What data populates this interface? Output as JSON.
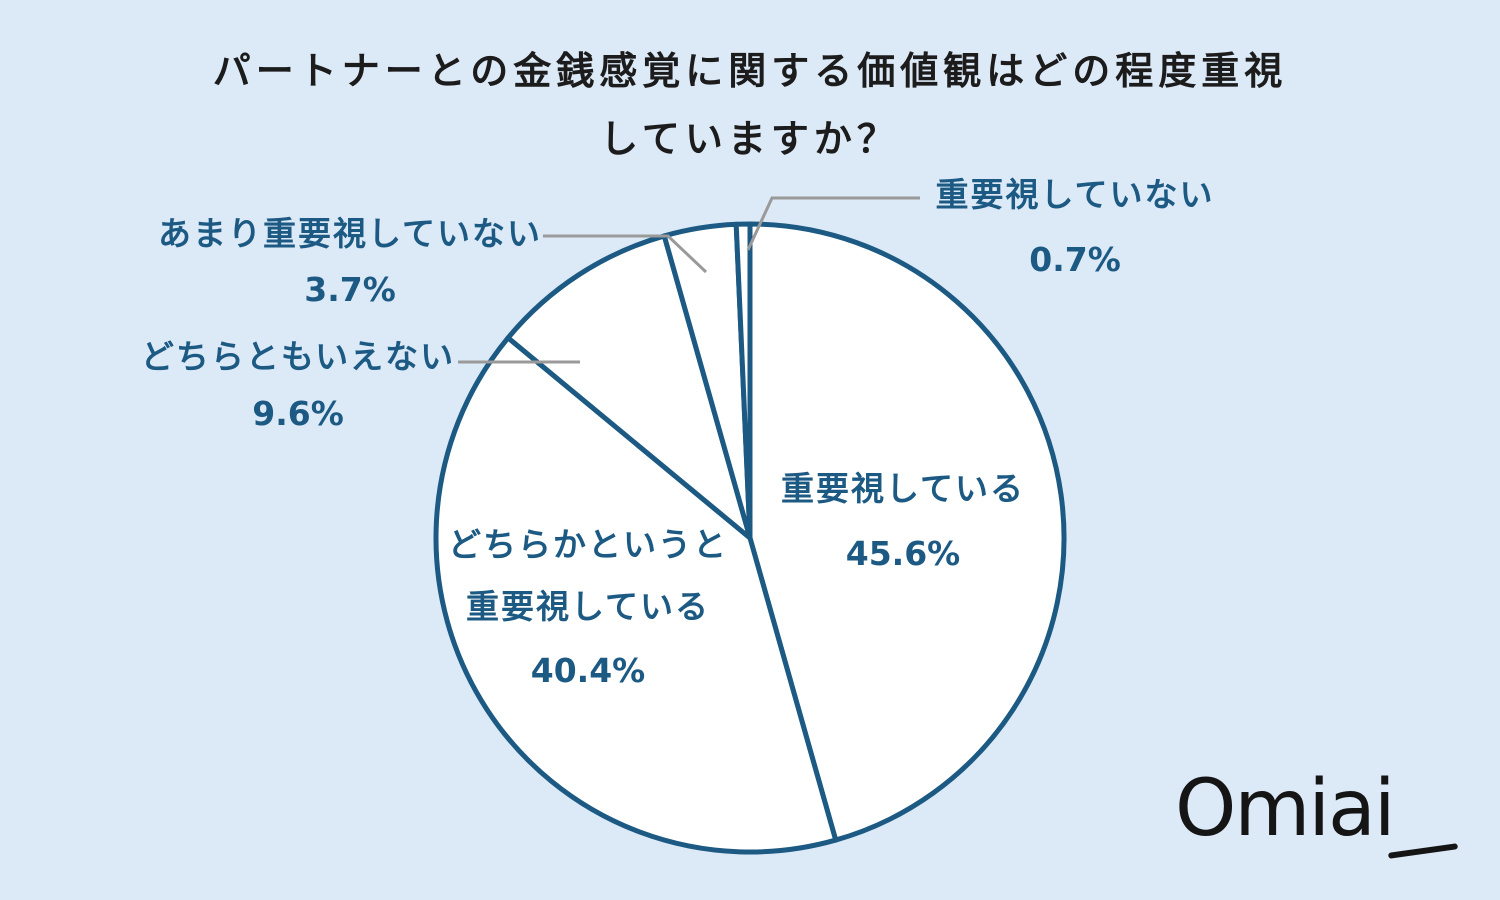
{
  "chart_data": {
    "type": "pie",
    "title_lines": [
      "パートナーとの金銭感覚に関する価値観はどの程度重視",
      "していますか？"
    ],
    "slices": [
      {
        "name_lines": [
          "重要視している"
        ],
        "value": 45.6,
        "label": "45.6%",
        "placement": "inside"
      },
      {
        "name_lines": [
          "どちらかというと",
          "重要視している"
        ],
        "value": 40.4,
        "label": "40.4%",
        "placement": "inside"
      },
      {
        "name_lines": [
          "どちらともいえない"
        ],
        "value": 9.6,
        "label": "9.6%",
        "placement": "outside-left"
      },
      {
        "name_lines": [
          "あまり重要視していない"
        ],
        "value": 3.7,
        "label": "3.7%",
        "placement": "outside-top-left"
      },
      {
        "name_lines": [
          "重要視していない"
        ],
        "value": 0.7,
        "label": "0.7%",
        "placement": "outside-top-right"
      }
    ],
    "start": "12 o'clock",
    "direction": "clockwise"
  },
  "logo": {
    "text": "Omiai"
  },
  "colors": {
    "background": "#dce9f7",
    "slice_fill": "#ffffff",
    "slice_stroke": "#1c5a84",
    "label": "#1c5a84",
    "leader_line": "#9a9a9a",
    "title": "#1c1c1c"
  }
}
